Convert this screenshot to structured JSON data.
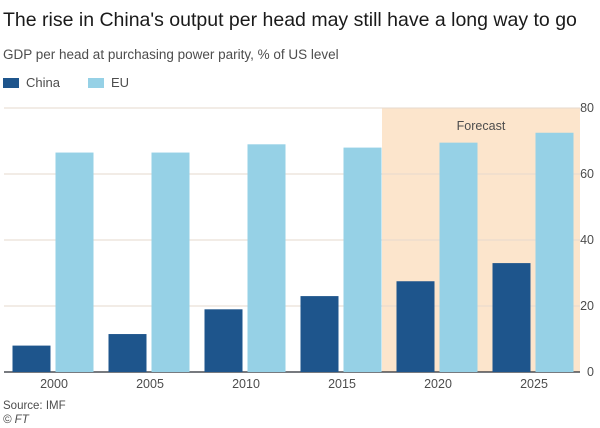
{
  "chart_data": {
    "type": "bar",
    "title": "The rise in China's output per head may still have a long way to go",
    "subtitle": "GDP per head at purchasing power parity, % of US level",
    "categories": [
      "2000",
      "2005",
      "2010",
      "2015",
      "2020",
      "2025"
    ],
    "series": [
      {
        "name": "China",
        "color": "#1e558c",
        "values": [
          8,
          11.5,
          19,
          23,
          27.5,
          33
        ]
      },
      {
        "name": "EU",
        "color": "#96d1e6",
        "values": [
          66.5,
          66.5,
          69,
          68,
          69.5,
          72.5
        ]
      }
    ],
    "ylim": [
      0,
      80
    ],
    "yticks": [
      "0",
      "20",
      "40",
      "60",
      "80"
    ],
    "ytick_values": [
      0,
      20,
      40,
      60,
      80
    ],
    "y_axis_side": "right",
    "grid": true,
    "forecast": {
      "label": "Forecast",
      "from_category": "2020",
      "color": "#fce5cc"
    },
    "source": "Source: IMF",
    "credit": "© FT"
  }
}
